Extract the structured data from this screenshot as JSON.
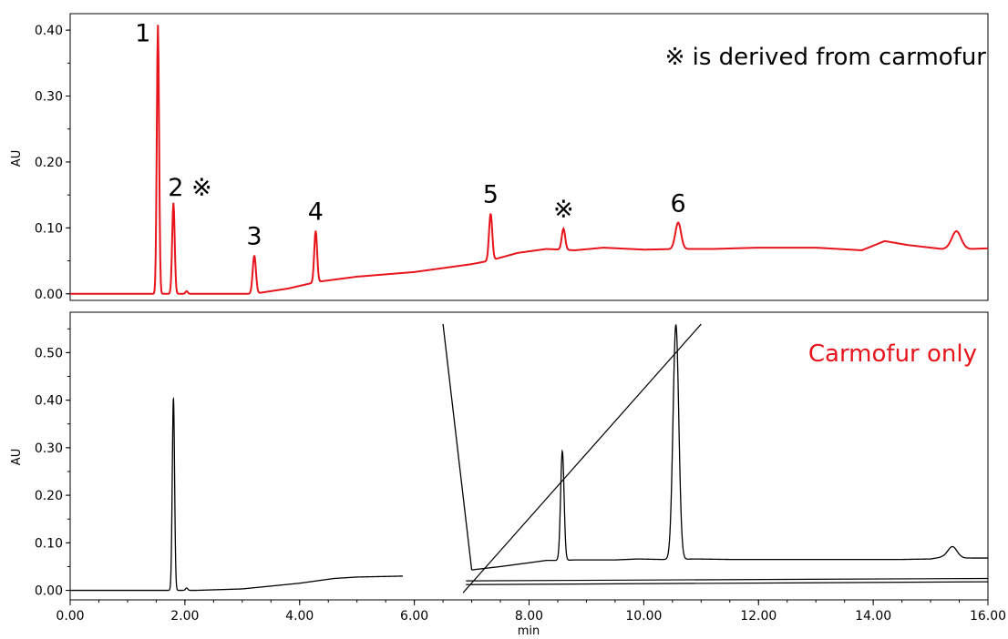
{
  "chart_data": [
    {
      "type": "line",
      "panel": "top",
      "ylabel": "AU",
      "xlim": [
        0,
        16
      ],
      "ylim": [
        -0.01,
        0.425
      ],
      "yticks": [
        "0.00",
        "0.10",
        "0.20",
        "0.30",
        "0.40"
      ],
      "grid": false,
      "color": "#e8141c",
      "baseline": {
        "x": [
          0.0,
          1.2,
          1.5,
          3.2,
          3.8,
          4.3,
          5.0,
          6.0,
          7.0,
          7.3,
          7.8,
          8.3,
          8.8,
          9.3,
          10.0,
          10.6,
          11.2,
          12.0,
          13.0,
          13.8,
          14.2,
          14.6,
          15.0,
          15.2,
          15.45,
          15.7,
          16.0
        ],
        "y": [
          0.0,
          0.0,
          0.0,
          0.0,
          0.008,
          0.018,
          0.026,
          0.033,
          0.045,
          0.05,
          0.062,
          0.068,
          0.066,
          0.07,
          0.067,
          0.068,
          0.068,
          0.07,
          0.07,
          0.066,
          0.08,
          0.074,
          0.07,
          0.068,
          0.07,
          0.068,
          0.069
        ]
      },
      "peaks": [
        {
          "label": "1",
          "x": 1.53,
          "height": 0.408,
          "width": 0.02
        },
        {
          "label": "2 ※",
          "x": 1.8,
          "height": 0.138,
          "width": 0.022
        },
        {
          "label": "",
          "x": 2.03,
          "height": 0.004,
          "width": 0.02
        },
        {
          "label": "3",
          "x": 3.21,
          "height": 0.058,
          "width": 0.028
        },
        {
          "label": "4",
          "x": 4.28,
          "height": 0.078,
          "width": 0.025
        },
        {
          "label": "5",
          "x": 7.33,
          "height": 0.071,
          "width": 0.028
        },
        {
          "label": "※",
          "x": 8.6,
          "height": 0.032,
          "width": 0.03
        },
        {
          "label": "6",
          "x": 10.6,
          "height": 0.04,
          "width": 0.05
        },
        {
          "label": "",
          "x": 15.45,
          "height": 0.025,
          "width": 0.08
        }
      ],
      "annotation": {
        "text": "※ is derived from carmofur",
        "color": "#000000",
        "position": "top-right"
      }
    },
    {
      "type": "line",
      "panel": "bottom",
      "ylabel": "AU",
      "xlabel": "min",
      "xlim": [
        0,
        16
      ],
      "ylim": [
        -0.02,
        0.585
      ],
      "yticks": [
        "0.00",
        "0.10",
        "0.20",
        "0.30",
        "0.40",
        "0.50"
      ],
      "xticks": [
        "0.00",
        "2.00",
        "4.00",
        "6.00",
        "8.00",
        "10.00",
        "12.00",
        "14.00",
        "16.00"
      ],
      "grid": false,
      "color": "#000000",
      "baseline": {
        "x": [
          0.0,
          1.6,
          2.2,
          3.0,
          4.0,
          4.6,
          5.0,
          5.8,
          5.81,
          6.5,
          7.0,
          7.5,
          8.0,
          8.4,
          9.0,
          10.0,
          11.0,
          12.0,
          13.0,
          14.0,
          15.0,
          15.2,
          15.5,
          15.7,
          16.0
        ],
        "y": [
          0.0,
          0.0,
          0.0,
          0.003,
          0.015,
          0.025,
          0.028,
          0.03,
          0.028,
          0.027,
          0.026,
          0.026,
          0.026,
          0.026,
          0.026,
          0.026,
          0.026,
          0.026,
          0.026,
          0.026,
          0.026,
          0.026,
          0.026,
          0.026,
          0.026
        ]
      },
      "peaks": [
        {
          "x": 1.8,
          "height": 0.404,
          "width": 0.02
        },
        {
          "x": 2.03,
          "height": 0.005,
          "width": 0.02
        }
      ],
      "overlay": {
        "description": "second trace starting offscale",
        "x": [
          6.5,
          7.0,
          7.5,
          8.0,
          8.3,
          8.58,
          8.8,
          9.5,
          9.9,
          10.3,
          10.55,
          10.9,
          11.5,
          12.5,
          13.5,
          14.5,
          15.0,
          15.2,
          15.4,
          15.6,
          16.0
        ],
        "y": [
          0.56,
          0.043,
          0.05,
          0.058,
          0.063,
          0.063,
          0.064,
          0.064,
          0.066,
          0.065,
          0.065,
          0.066,
          0.065,
          0.065,
          0.065,
          0.065,
          0.066,
          0.07,
          0.07,
          0.068,
          0.068
        ],
        "peaks": [
          {
            "x": 8.58,
            "height": 0.23,
            "width": 0.03
          },
          {
            "x": 10.56,
            "height": 0.494,
            "width": 0.05
          },
          {
            "x": 15.38,
            "height": 0.022,
            "width": 0.08
          }
        ]
      },
      "lines": [
        {
          "x": [
            6.85,
            11.0
          ],
          "y": [
            -0.005,
            0.56
          ]
        },
        {
          "x": [
            6.9,
            16.0
          ],
          "y": [
            0.012,
            0.018
          ]
        },
        {
          "x": [
            6.9,
            16.0
          ],
          "y": [
            0.02,
            0.025
          ]
        }
      ],
      "annotation": {
        "text": "Carmofur only",
        "color": "#e8141c",
        "position": "top-right"
      }
    }
  ]
}
